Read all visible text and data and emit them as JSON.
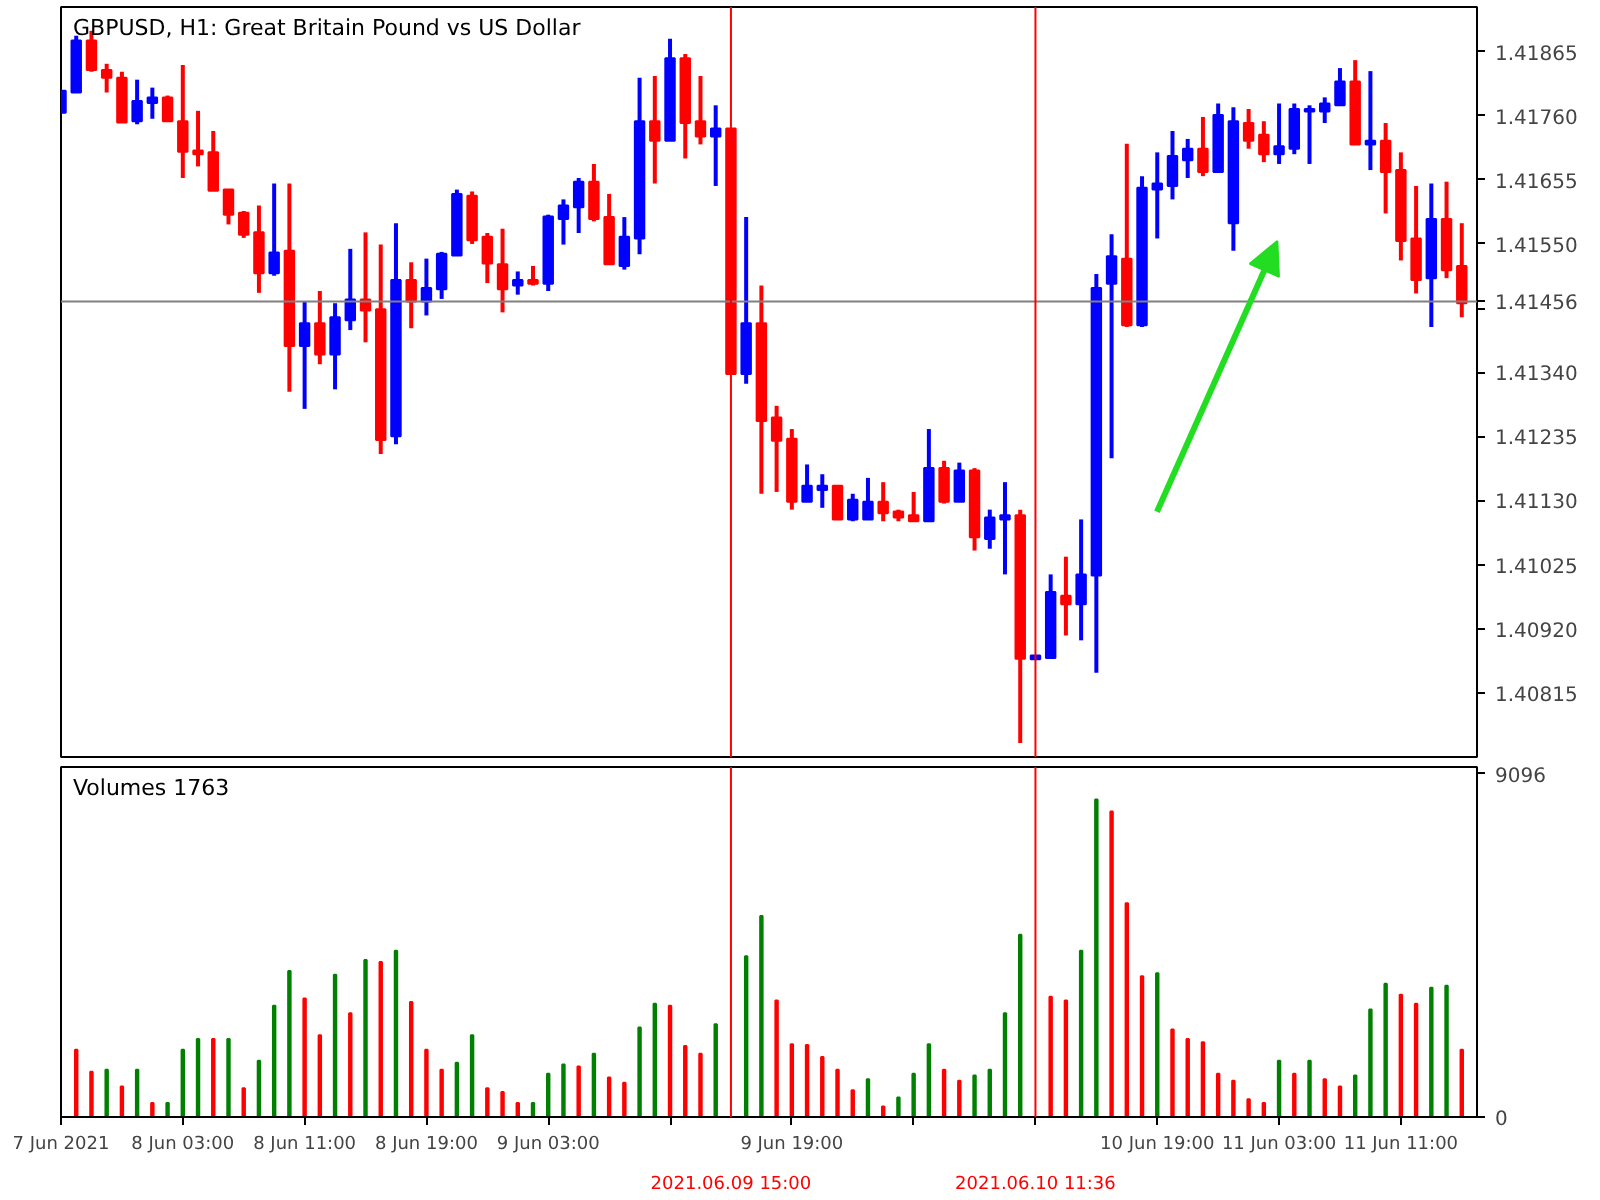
{
  "chart_data": [
    {
      "type": "candlestick",
      "title": "GBPUSD, H1:  Great Britain Pound vs US Dollar",
      "x": [
        "2021-06-07T19:00",
        "2021-06-07T20:00",
        "2021-06-07T21:00",
        "2021-06-07T22:00",
        "2021-06-07T23:00",
        "2021-06-08T00:00",
        "2021-06-08T01:00",
        "2021-06-08T02:00",
        "2021-06-08T03:00",
        "2021-06-08T04:00",
        "2021-06-08T05:00",
        "2021-06-08T06:00",
        "2021-06-08T07:00",
        "2021-06-08T08:00",
        "2021-06-08T09:00",
        "2021-06-08T10:00",
        "2021-06-08T11:00",
        "2021-06-08T12:00",
        "2021-06-08T13:00",
        "2021-06-08T14:00",
        "2021-06-08T15:00",
        "2021-06-08T16:00",
        "2021-06-08T17:00",
        "2021-06-08T18:00",
        "2021-06-08T19:00",
        "2021-06-08T20:00",
        "2021-06-08T21:00",
        "2021-06-08T22:00",
        "2021-06-08T23:00",
        "2021-06-09T00:00",
        "2021-06-09T01:00",
        "2021-06-09T02:00",
        "2021-06-09T03:00",
        "2021-06-09T04:00",
        "2021-06-09T05:00",
        "2021-06-09T06:00",
        "2021-06-09T07:00",
        "2021-06-09T08:00",
        "2021-06-09T09:00",
        "2021-06-09T10:00",
        "2021-06-09T11:00",
        "2021-06-09T12:00",
        "2021-06-09T13:00",
        "2021-06-09T14:00",
        "2021-06-09T15:00",
        "2021-06-09T16:00",
        "2021-06-09T17:00",
        "2021-06-09T18:00",
        "2021-06-09T19:00",
        "2021-06-09T20:00",
        "2021-06-09T21:00",
        "2021-06-09T22:00",
        "2021-06-09T23:00",
        "2021-06-10T00:00",
        "2021-06-10T01:00",
        "2021-06-10T02:00",
        "2021-06-10T03:00",
        "2021-06-10T04:00",
        "2021-06-10T05:00",
        "2021-06-10T06:00",
        "2021-06-10T07:00",
        "2021-06-10T08:00",
        "2021-06-10T09:00",
        "2021-06-10T10:00",
        "2021-06-10T11:00",
        "2021-06-10T12:00",
        "2021-06-10T13:00",
        "2021-06-10T14:00",
        "2021-06-10T15:00",
        "2021-06-10T16:00",
        "2021-06-10T17:00",
        "2021-06-10T18:00",
        "2021-06-10T19:00",
        "2021-06-10T20:00",
        "2021-06-10T21:00",
        "2021-06-10T22:00",
        "2021-06-10T23:00",
        "2021-06-11T00:00",
        "2021-06-11T01:00",
        "2021-06-11T02:00",
        "2021-06-11T03:00",
        "2021-06-11T04:00",
        "2021-06-11T05:00",
        "2021-06-11T06:00",
        "2021-06-11T07:00",
        "2021-06-11T08:00",
        "2021-06-11T09:00",
        "2021-06-11T10:00",
        "2021-06-11T11:00",
        "2021-06-11T12:00",
        "2021-06-11T13:00",
        "2021-06-11T14:00",
        "2021-06-11T15:00"
      ],
      "ohlc": [
        [
          1.41765,
          1.41801,
          1.41765,
          1.41801
        ],
        [
          1.41798,
          1.41891,
          1.41798,
          1.41883
        ],
        [
          1.41883,
          1.41899,
          1.41832,
          1.41835
        ],
        [
          1.41835,
          1.41845,
          1.41798,
          1.41822
        ],
        [
          1.41822,
          1.41832,
          1.41749,
          1.41749
        ],
        [
          1.41751,
          1.41819,
          1.41746,
          1.41784
        ],
        [
          1.41781,
          1.41806,
          1.41755,
          1.4179
        ],
        [
          1.4179,
          1.41793,
          1.41751,
          1.41751
        ],
        [
          1.41751,
          1.41843,
          1.41658,
          1.41701
        ],
        [
          1.41703,
          1.41768,
          1.41677,
          1.41697
        ],
        [
          1.417,
          1.41735,
          1.41637,
          1.41637
        ],
        [
          1.41639,
          1.41639,
          1.41582,
          1.41598
        ],
        [
          1.41601,
          1.41604,
          1.4156,
          1.41565
        ],
        [
          1.41569,
          1.41613,
          1.4147,
          1.41502
        ],
        [
          1.41502,
          1.41649,
          1.41498,
          1.41536
        ],
        [
          1.41539,
          1.41649,
          1.41308,
          1.41383
        ],
        [
          1.41383,
          1.41456,
          1.4128,
          1.4142
        ],
        [
          1.4142,
          1.41473,
          1.41353,
          1.41369
        ],
        [
          1.41369,
          1.41453,
          1.41312,
          1.4143
        ],
        [
          1.41425,
          1.41542,
          1.41409,
          1.41459
        ],
        [
          1.41459,
          1.41569,
          1.41389,
          1.41441
        ],
        [
          1.41443,
          1.41549,
          1.41206,
          1.41229
        ],
        [
          1.41235,
          1.41584,
          1.41222,
          1.41491
        ],
        [
          1.41491,
          1.4152,
          1.41412,
          1.41456
        ],
        [
          1.41456,
          1.41526,
          1.41433,
          1.41478
        ],
        [
          1.41476,
          1.41537,
          1.4146,
          1.41534
        ],
        [
          1.41531,
          1.41639,
          1.41531,
          1.41632
        ],
        [
          1.41629,
          1.41636,
          1.4155,
          1.41556
        ],
        [
          1.41562,
          1.41568,
          1.41486,
          1.41518
        ],
        [
          1.41517,
          1.41575,
          1.41438,
          1.41476
        ],
        [
          1.41482,
          1.41505,
          1.41467,
          1.41491
        ],
        [
          1.41491,
          1.41514,
          1.41482,
          1.41485
        ],
        [
          1.41485,
          1.41598,
          1.41473,
          1.41595
        ],
        [
          1.41591,
          1.41623,
          1.41549,
          1.41613
        ],
        [
          1.4161,
          1.41658,
          1.41568,
          1.41652
        ],
        [
          1.41652,
          1.41681,
          1.41587,
          1.41591
        ],
        [
          1.41594,
          1.41632,
          1.41517,
          1.41517
        ],
        [
          1.41514,
          1.41594,
          1.41508,
          1.41562
        ],
        [
          1.41559,
          1.41822,
          1.41533,
          1.41751
        ],
        [
          1.41751,
          1.41825,
          1.41649,
          1.41719
        ],
        [
          1.41719,
          1.41886,
          1.41719,
          1.41854
        ],
        [
          1.41854,
          1.41861,
          1.4169,
          1.41748
        ],
        [
          1.41751,
          1.41825,
          1.41713,
          1.41726
        ],
        [
          1.41726,
          1.41777,
          1.41645,
          1.41739
        ],
        [
          1.41739,
          1.41739,
          1.41337,
          1.41337
        ],
        [
          1.41337,
          1.41594,
          1.41321,
          1.4142
        ],
        [
          1.4142,
          1.41482,
          1.41141,
          1.4126
        ],
        [
          1.41266,
          1.41285,
          1.41144,
          1.41228
        ],
        [
          1.41231,
          1.41247,
          1.41115,
          1.41128
        ],
        [
          1.41128,
          1.41189,
          1.41128,
          1.41154
        ],
        [
          1.41147,
          1.41173,
          1.41118,
          1.41154
        ],
        [
          1.41154,
          1.41154,
          1.41099,
          1.41099
        ],
        [
          1.41099,
          1.41141,
          1.41096,
          1.41131
        ],
        [
          1.41099,
          1.41167,
          1.41099,
          1.41128
        ],
        [
          1.41128,
          1.4116,
          1.41096,
          1.41109
        ],
        [
          1.41112,
          1.41115,
          1.41096,
          1.41102
        ],
        [
          1.41106,
          1.41144,
          1.41096,
          1.41096
        ],
        [
          1.41096,
          1.41247,
          1.41096,
          1.41183
        ],
        [
          1.41183,
          1.41195,
          1.41125,
          1.41128
        ],
        [
          1.41128,
          1.41192,
          1.41128,
          1.41179
        ],
        [
          1.41179,
          1.41183,
          1.41048,
          1.4107
        ],
        [
          1.41067,
          1.41115,
          1.41051,
          1.41102
        ],
        [
          1.41099,
          1.4116,
          1.41009,
          1.41106
        ],
        [
          1.41106,
          1.41115,
          1.40733,
          1.40871
        ],
        [
          1.4087,
          1.40876,
          1.4087,
          1.40876
        ],
        [
          1.40872,
          1.41009,
          1.40872,
          1.4098
        ],
        [
          1.40974,
          1.41038,
          1.40909,
          1.4096
        ],
        [
          1.4096,
          1.41099,
          1.40901,
          1.41009
        ],
        [
          1.41007,
          1.41501,
          1.40848,
          1.41478
        ],
        [
          1.41485,
          1.41566,
          1.41199,
          1.4153
        ],
        [
          1.41526,
          1.41714,
          1.41414,
          1.41417
        ],
        [
          1.41417,
          1.41661,
          1.41414,
          1.41642
        ],
        [
          1.41639,
          1.417,
          1.41559,
          1.41649
        ],
        [
          1.41645,
          1.41735,
          1.41623,
          1.41694
        ],
        [
          1.41687,
          1.41722,
          1.41658,
          1.41706
        ],
        [
          1.41706,
          1.41758,
          1.41661,
          1.41668
        ],
        [
          1.41668,
          1.4178,
          1.41668,
          1.41761
        ],
        [
          1.41584,
          1.41774,
          1.41539,
          1.41751
        ],
        [
          1.41748,
          1.41771,
          1.41706,
          1.41719
        ],
        [
          1.41729,
          1.41751,
          1.41684,
          1.41697
        ],
        [
          1.41697,
          1.4178,
          1.41681,
          1.4171
        ],
        [
          1.41706,
          1.4178,
          1.41697,
          1.41771
        ],
        [
          1.41767,
          1.41777,
          1.41681,
          1.41771
        ],
        [
          1.41767,
          1.4179,
          1.41748,
          1.4178
        ],
        [
          1.41777,
          1.41838,
          1.41777,
          1.41816
        ],
        [
          1.41816,
          1.41851,
          1.41713,
          1.41713
        ],
        [
          1.41713,
          1.41833,
          1.41671,
          1.41719
        ],
        [
          1.41719,
          1.41748,
          1.416,
          1.41668
        ],
        [
          1.41671,
          1.417,
          1.41523,
          1.41555
        ],
        [
          1.41559,
          1.41645,
          1.41469,
          1.41491
        ],
        [
          1.41494,
          1.41649,
          1.41414,
          1.41591
        ],
        [
          1.41591,
          1.41652,
          1.41494,
          1.41507
        ],
        [
          1.41514,
          1.41584,
          1.4143,
          1.41453
        ]
      ],
      "colors": [
        "#0000ff",
        "#0000ff",
        "#ff0000",
        "#ff0000",
        "#ff0000",
        "#0000ff",
        "#0000ff",
        "#ff0000",
        "#ff0000",
        "#ff0000",
        "#ff0000",
        "#ff0000",
        "#ff0000",
        "#ff0000",
        "#0000ff",
        "#ff0000",
        "#0000ff",
        "#ff0000",
        "#0000ff",
        "#0000ff",
        "#ff0000",
        "#ff0000",
        "#0000ff",
        "#ff0000",
        "#0000ff",
        "#0000ff",
        "#0000ff",
        "#ff0000",
        "#ff0000",
        "#ff0000",
        "#0000ff",
        "#ff0000",
        "#0000ff",
        "#0000ff",
        "#0000ff",
        "#ff0000",
        "#ff0000",
        "#0000ff",
        "#0000ff",
        "#ff0000",
        "#0000ff",
        "#ff0000",
        "#ff0000",
        "#0000ff",
        "#ff0000",
        "#0000ff",
        "#ff0000",
        "#ff0000",
        "#ff0000",
        "#0000ff",
        "#0000ff",
        "#ff0000",
        "#0000ff",
        "#0000ff",
        "#ff0000",
        "#ff0000",
        "#ff0000",
        "#0000ff",
        "#ff0000",
        "#0000ff",
        "#ff0000",
        "#0000ff",
        "#0000ff",
        "#ff0000",
        "#0000ff",
        "#0000ff",
        "#ff0000",
        "#0000ff",
        "#0000ff",
        "#0000ff",
        "#ff0000",
        "#0000ff",
        "#0000ff",
        "#0000ff",
        "#0000ff",
        "#ff0000",
        "#0000ff",
        "#0000ff",
        "#ff0000",
        "#ff0000",
        "#0000ff",
        "#0000ff",
        "#0000ff",
        "#0000ff",
        "#0000ff",
        "#ff0000",
        "#0000ff",
        "#ff0000",
        "#ff0000",
        "#ff0000",
        "#0000ff",
        "#ff0000",
        "#ff0000"
      ],
      "xlim": [
        "2021-06-07T19:00",
        "2021-06-11T16:00"
      ],
      "ylim": [
        1.4071,
        1.41938
      ],
      "yticks": [
        1.41865,
        {
          "value": 1.4176,
          "label": "1.41760"
        },
        1.41655,
        {
          "value": 1.4155,
          "label": "1.41550"
        },
        {
          "value": 1.41445,
          "label": null
        },
        {
          "value": 1.4134,
          "label": "1.41340"
        },
        1.41235,
        {
          "value": 1.4113,
          "label": "1.41130"
        },
        1.41025,
        {
          "value": 1.4092,
          "label": "1.40920"
        },
        1.40815
      ],
      "tick_labels": "y",
      "ref_lines": [
        {
          "axis": "y",
          "value": 1.41456,
          "label": "1.41456",
          "color": "#808080"
        },
        {
          "axis": "x",
          "value": "2021-06-09T15:00",
          "color": "#ff0000"
        },
        {
          "axis": "x",
          "value": "2021-06-10T11:00",
          "color": "#ff0000"
        }
      ]
    },
    {
      "type": "bar",
      "title": "Volumes 1763",
      "x": [
        "2021-06-07T20:00",
        "2021-06-07T21:00",
        "2021-06-07T22:00",
        "2021-06-07T23:00",
        "2021-06-08T00:00",
        "2021-06-08T01:00",
        "2021-06-08T02:00",
        "2021-06-08T03:00",
        "2021-06-08T04:00",
        "2021-06-08T05:00",
        "2021-06-08T06:00",
        "2021-06-08T07:00",
        "2021-06-08T08:00",
        "2021-06-08T09:00",
        "2021-06-08T10:00",
        "2021-06-08T11:00",
        "2021-06-08T12:00",
        "2021-06-08T13:00",
        "2021-06-08T14:00",
        "2021-06-08T15:00",
        "2021-06-08T16:00",
        "2021-06-08T17:00",
        "2021-06-08T18:00",
        "2021-06-08T19:00",
        "2021-06-08T20:00",
        "2021-06-08T21:00",
        "2021-06-08T22:00",
        "2021-06-08T23:00",
        "2021-06-09T00:00",
        "2021-06-09T01:00",
        "2021-06-09T02:00",
        "2021-06-09T03:00",
        "2021-06-09T04:00",
        "2021-06-09T05:00",
        "2021-06-09T06:00",
        "2021-06-09T07:00",
        "2021-06-09T08:00",
        "2021-06-09T09:00",
        "2021-06-09T10:00",
        "2021-06-09T11:00",
        "2021-06-09T12:00",
        "2021-06-09T13:00",
        "2021-06-09T14:00",
        "2021-06-09T15:00",
        "2021-06-09T16:00",
        "2021-06-09T17:00",
        "2021-06-09T18:00",
        "2021-06-09T19:00",
        "2021-06-09T20:00",
        "2021-06-09T21:00",
        "2021-06-09T22:00",
        "2021-06-09T23:00",
        "2021-06-10T00:00",
        "2021-06-10T01:00",
        "2021-06-10T02:00",
        "2021-06-10T03:00",
        "2021-06-10T04:00",
        "2021-06-10T05:00",
        "2021-06-10T06:00",
        "2021-06-10T07:00",
        "2021-06-10T08:00",
        "2021-06-10T09:00",
        "2021-06-10T10:00",
        "2021-06-10T11:00",
        "2021-06-10T12:00",
        "2021-06-10T13:00",
        "2021-06-10T14:00",
        "2021-06-10T15:00",
        "2021-06-10T16:00",
        "2021-06-10T17:00",
        "2021-06-10T18:00",
        "2021-06-10T19:00",
        "2021-06-10T20:00",
        "2021-06-10T21:00",
        "2021-06-10T22:00",
        "2021-06-10T23:00",
        "2021-06-11T00:00",
        "2021-06-11T01:00",
        "2021-06-11T02:00",
        "2021-06-11T03:00",
        "2021-06-11T04:00",
        "2021-06-11T05:00",
        "2021-06-11T06:00",
        "2021-06-11T07:00",
        "2021-06-11T08:00",
        "2021-06-11T09:00",
        "2021-06-11T10:00",
        "2021-06-11T11:00",
        "2021-06-11T12:00",
        "2021-06-11T13:00",
        "2021-06-11T14:00",
        "2021-06-11T15:00"
      ],
      "values": [
        1780,
        1200,
        1250,
        810,
        1250,
        370,
        370,
        1780,
        2070,
        2070,
        2070,
        760,
        1490,
        2950,
        3870,
        3140,
        2170,
        3770,
        2750,
        4160,
        4110,
        4410,
        3050,
        1780,
        1250,
        1440,
        2170,
        760,
        660,
        370,
        370,
        1150,
        1390,
        1340,
        1680,
        1050,
        910,
        2370,
        3000,
        2950,
        1880,
        1680,
        2460,
        null,
        4260,
        5330,
        3090,
        1930,
        1910,
        1590,
        1250,
        710,
        1000,
        280,
        520,
        1150,
        1930,
        1250,
        960,
        1100,
        1250,
        2750,
        4830,
        null,
        3190,
        3090,
        4410,
        8420,
        8100,
        5670,
        3730,
        3810,
        2320,
        2070,
        1980,
        1150,
        960,
        470,
        370,
        1490,
        1150,
        1490,
        1000,
        810,
        1100,
        2850,
        3530,
        3240,
        3000,
        3430,
        3480,
        1780
      ],
      "colors": [
        "#ff0000",
        "#ff0000",
        "#008000",
        "#ff0000",
        "#008000",
        "#ff0000",
        "#008000",
        "#008000",
        "#008000",
        "#ff0000",
        "#008000",
        "#ff0000",
        "#008000",
        "#008000",
        "#008000",
        "#ff0000",
        "#ff0000",
        "#008000",
        "#ff0000",
        "#008000",
        "#ff0000",
        "#008000",
        "#ff0000",
        "#ff0000",
        "#ff0000",
        "#008000",
        "#008000",
        "#ff0000",
        "#ff0000",
        "#ff0000",
        "#008000",
        "#008000",
        "#008000",
        "#ff0000",
        "#008000",
        "#ff0000",
        "#ff0000",
        "#008000",
        "#008000",
        "#ff0000",
        "#ff0000",
        "#ff0000",
        "#008000",
        "#ff0000",
        "#008000",
        "#008000",
        "#ff0000",
        "#ff0000",
        "#ff0000",
        "#ff0000",
        "#ff0000",
        "#ff0000",
        "#008000",
        "#ff0000",
        "#008000",
        "#008000",
        "#008000",
        "#ff0000",
        "#ff0000",
        "#008000",
        "#008000",
        "#008000",
        "#008000",
        "#ff0000",
        "#ff0000",
        "#ff0000",
        "#008000",
        "#008000",
        "#ff0000",
        "#ff0000",
        "#ff0000",
        "#008000",
        "#ff0000",
        "#ff0000",
        "#ff0000",
        "#ff0000",
        "#ff0000",
        "#ff0000",
        "#ff0000",
        "#008000",
        "#ff0000",
        "#008000",
        "#ff0000",
        "#ff0000",
        "#008000",
        "#008000",
        "#008000",
        "#ff0000",
        "#ff0000",
        "#008000",
        "#008000",
        "#ff0000"
      ],
      "xlim": [
        "2021-06-07T19:00",
        "2021-06-11T16:00"
      ],
      "ylim": [
        0,
        9280
      ],
      "yticks": [
        0,
        9096
      ],
      "xticks": [
        {
          "value": "2021-06-07T19:00",
          "label": "7 Jun 2021"
        },
        {
          "value": "2021-06-08T03:00",
          "label": "8 Jun 03:00"
        },
        {
          "value": "2021-06-08T11:00",
          "label": "8 Jun 11:00"
        },
        {
          "value": "2021-06-08T19:00",
          "label": "8 Jun 19:00"
        },
        {
          "value": "2021-06-09T03:00",
          "label": "9 Jun 03:00"
        },
        {
          "value": "2021-06-09T11:00",
          "label": null
        },
        {
          "value": "2021-06-09T19:00",
          "label": "9 Jun 19:00"
        },
        {
          "value": "2021-06-10T03:00",
          "label": null
        },
        {
          "value": "2021-06-10T11:00",
          "label": null
        },
        {
          "value": "2021-06-10T19:00",
          "label": "10 Jun 19:00"
        },
        {
          "value": "2021-06-11T03:00",
          "label": "11 Jun 03:00"
        },
        {
          "value": "2021-06-11T11:00",
          "label": "11 Jun 11:00"
        }
      ],
      "ref_lines": [
        {
          "axis": "x",
          "value": "2021-06-09T15:00",
          "label": "2021.06.09 15:00",
          "color": "#ff0000"
        },
        {
          "axis": "x",
          "value": "2021-06-10T11:00",
          "label": "2021.06.10 11:36",
          "color": "#ff0000"
        }
      ]
    }
  ]
}
